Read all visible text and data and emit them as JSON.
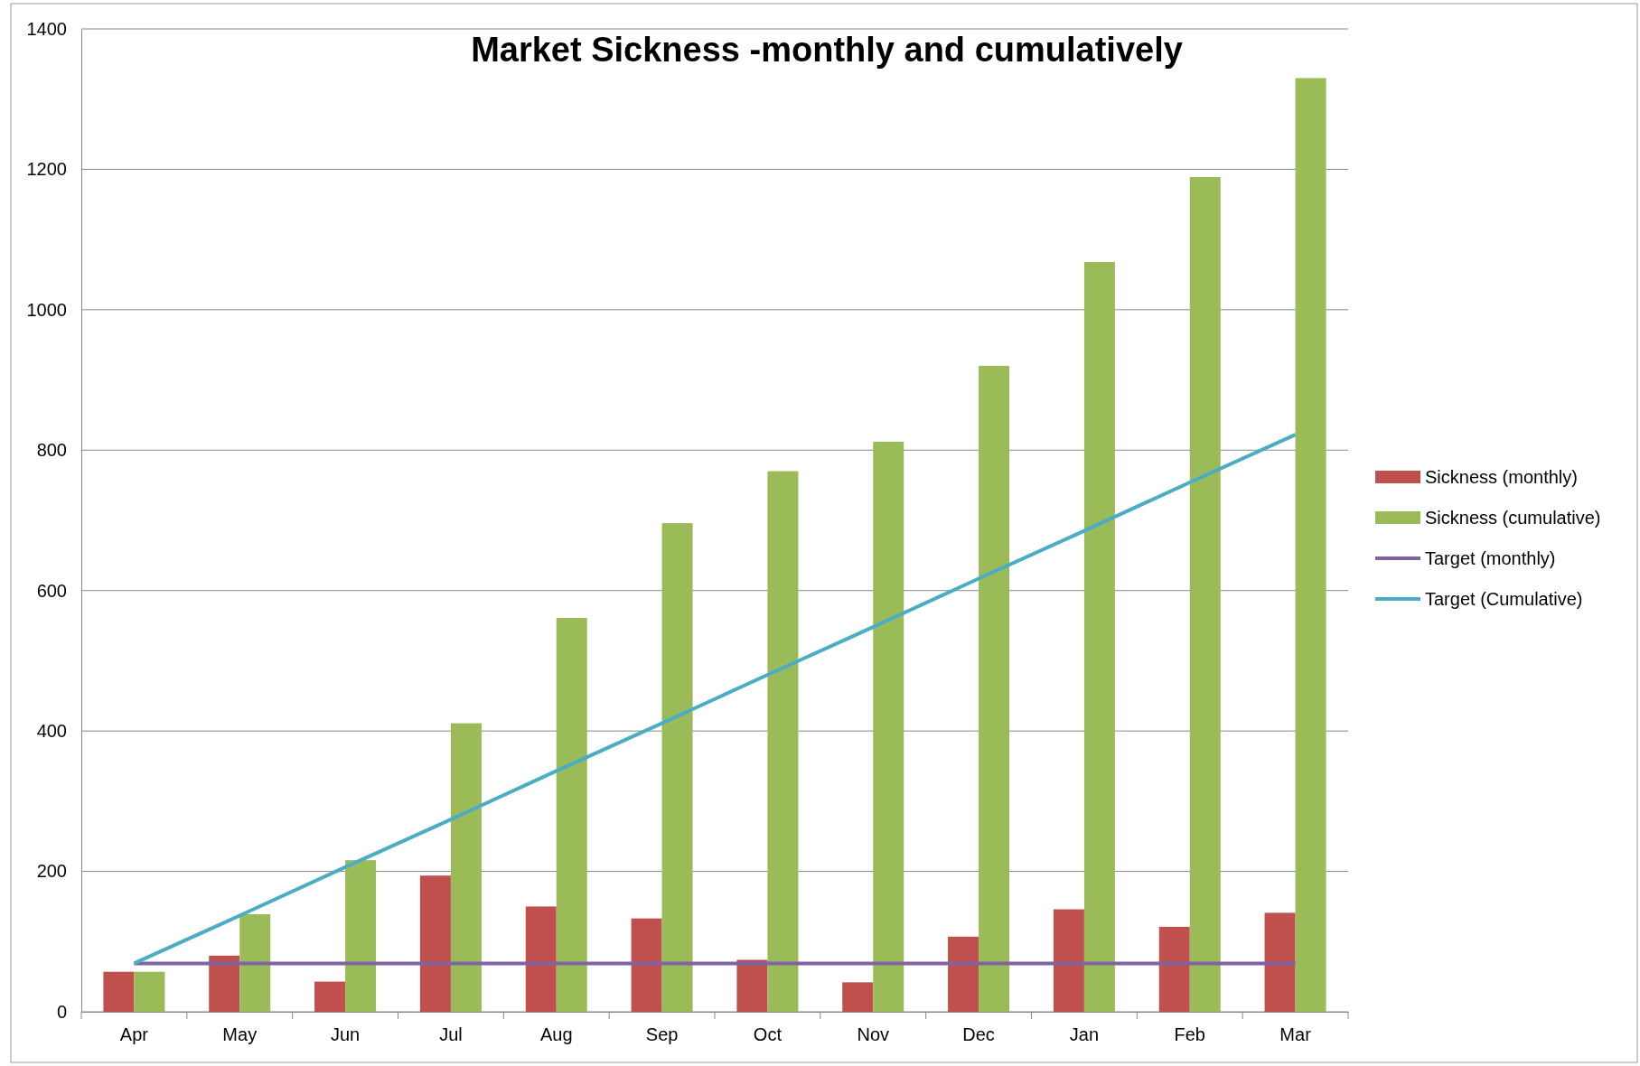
{
  "chart_data": {
    "type": "bar",
    "title": "Market Sickness -monthly and cumulatively",
    "categories": [
      "Apr",
      "May",
      "Jun",
      "Jul",
      "Aug",
      "Sep",
      "Oct",
      "Nov",
      "Dec",
      "Jan",
      "Feb",
      "Mar"
    ],
    "series": [
      {
        "name": "Sickness (monthly)",
        "color": "#c0504d",
        "values": [
          57,
          80,
          43,
          194,
          150,
          133,
          74,
          42,
          107,
          146,
          121,
          141
        ]
      },
      {
        "name": "Sickness (cumulative)",
        "color": "#9bbb59",
        "values": [
          57,
          139,
          216,
          411,
          561,
          696,
          770,
          812,
          920,
          1068,
          1189,
          1330
        ]
      },
      {
        "name": "Target (monthly)",
        "type": "line",
        "color": "#8064a2",
        "values": [
          69,
          69,
          69,
          69,
          69,
          69,
          69,
          69,
          69,
          69,
          69,
          69
        ]
      },
      {
        "name": "Target (Cumulative)",
        "type": "line",
        "color": "#4bacc6",
        "values": [
          69,
          137,
          206,
          274,
          343,
          411,
          480,
          548,
          617,
          685,
          754,
          822
        ]
      }
    ],
    "ylim": [
      0,
      1400
    ],
    "yticks": [
      0,
      200,
      400,
      600,
      800,
      1000,
      1200,
      1400
    ],
    "grid": "y",
    "legend": "right",
    "marker": "none",
    "line_style": "solid"
  }
}
